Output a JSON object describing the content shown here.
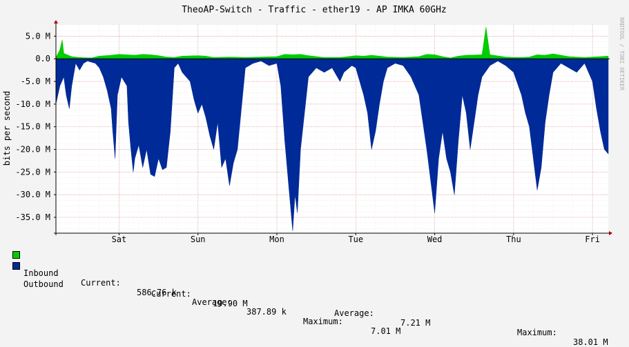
{
  "chart_data": {
    "type": "area",
    "title": "TheoAP-Switch - Traffic - ether19 - AP IMKA 60GHz",
    "ylabel": "bits per second",
    "watermark": "RRDTOOL / TOBI OETIKER",
    "ylim": [
      -38.5,
      7.5
    ],
    "yticks": [
      {
        "value": 5,
        "label": "5.0 M"
      },
      {
        "value": 0,
        "label": "0.0"
      },
      {
        "value": -5,
        "label": "-5.0 M"
      },
      {
        "value": -10,
        "label": "-10.0 M"
      },
      {
        "value": -15,
        "label": "-15.0 M"
      },
      {
        "value": -20,
        "label": "-20.0 M"
      },
      {
        "value": -25,
        "label": "-25.0 M"
      },
      {
        "value": -30,
        "label": "-30.0 M"
      },
      {
        "value": -35,
        "label": "-35.0 M"
      }
    ],
    "xrange": [
      0,
      7.0
    ],
    "xticks": [
      {
        "value": 0.8,
        "label": "Sat"
      },
      {
        "value": 1.8,
        "label": "Sun"
      },
      {
        "value": 2.8,
        "label": "Mon"
      },
      {
        "value": 3.8,
        "label": "Tue"
      },
      {
        "value": 4.8,
        "label": "Wed"
      },
      {
        "value": 5.8,
        "label": "Thu"
      },
      {
        "value": 6.8,
        "label": "Fri"
      }
    ],
    "grid": true,
    "colors": {
      "inbound": "#00CC00",
      "outbound": "#002A97",
      "grid_major": "#E8A8A8",
      "axis": "#000000",
      "background": "#FFFFFF"
    },
    "series": [
      {
        "name": "Inbound",
        "points": [
          [
            0,
            0.3
          ],
          [
            0.05,
            2.0
          ],
          [
            0.08,
            4.2
          ],
          [
            0.1,
            1.2
          ],
          [
            0.2,
            0.5
          ],
          [
            0.3,
            0.3
          ],
          [
            0.45,
            0.2
          ],
          [
            0.55,
            0.6
          ],
          [
            0.7,
            0.8
          ],
          [
            0.8,
            1.0
          ],
          [
            0.9,
            0.9
          ],
          [
            1.0,
            0.8
          ],
          [
            1.1,
            1.0
          ],
          [
            1.2,
            0.9
          ],
          [
            1.3,
            0.7
          ],
          [
            1.4,
            0.4
          ],
          [
            1.5,
            0.3
          ],
          [
            1.6,
            0.6
          ],
          [
            1.8,
            0.7
          ],
          [
            1.9,
            0.6
          ],
          [
            2.0,
            0.3
          ],
          [
            2.2,
            0.4
          ],
          [
            2.4,
            0.3
          ],
          [
            2.6,
            0.4
          ],
          [
            2.8,
            0.5
          ],
          [
            2.9,
            1.0
          ],
          [
            3.0,
            0.9
          ],
          [
            3.1,
            1.0
          ],
          [
            3.2,
            0.7
          ],
          [
            3.4,
            0.3
          ],
          [
            3.6,
            0.3
          ],
          [
            3.7,
            0.5
          ],
          [
            3.8,
            0.7
          ],
          [
            3.9,
            0.6
          ],
          [
            4.0,
            0.8
          ],
          [
            4.1,
            0.6
          ],
          [
            4.2,
            0.4
          ],
          [
            4.4,
            0.3
          ],
          [
            4.6,
            0.5
          ],
          [
            4.7,
            1.0
          ],
          [
            4.8,
            0.9
          ],
          [
            4.9,
            0.5
          ],
          [
            5.0,
            0.2
          ],
          [
            5.1,
            0.6
          ],
          [
            5.2,
            0.8
          ],
          [
            5.4,
            0.9
          ],
          [
            5.45,
            7.0
          ],
          [
            5.5,
            0.9
          ],
          [
            5.7,
            0.4
          ],
          [
            5.8,
            0.3
          ],
          [
            5.9,
            0.3
          ],
          [
            6.0,
            0.4
          ],
          [
            6.1,
            0.9
          ],
          [
            6.2,
            0.8
          ],
          [
            6.3,
            1.1
          ],
          [
            6.4,
            0.8
          ],
          [
            6.5,
            0.5
          ],
          [
            6.7,
            0.3
          ],
          [
            6.8,
            0.4
          ],
          [
            6.9,
            0.5
          ],
          [
            7.0,
            0.6
          ]
        ]
      },
      {
        "name": "Outbound",
        "points": [
          [
            0,
            -10.0
          ],
          [
            0.05,
            -6.0
          ],
          [
            0.1,
            -4.0
          ],
          [
            0.13,
            -8.0
          ],
          [
            0.17,
            -11.0
          ],
          [
            0.2,
            -6.0
          ],
          [
            0.25,
            -1.0
          ],
          [
            0.3,
            -2.5
          ],
          [
            0.35,
            -1.0
          ],
          [
            0.4,
            -0.5
          ],
          [
            0.5,
            -1.0
          ],
          [
            0.55,
            -2.0
          ],
          [
            0.6,
            -4.0
          ],
          [
            0.65,
            -7.0
          ],
          [
            0.7,
            -11.0
          ],
          [
            0.72,
            -16.0
          ],
          [
            0.75,
            -22.0
          ],
          [
            0.78,
            -8.0
          ],
          [
            0.83,
            -4.0
          ],
          [
            0.9,
            -6.0
          ],
          [
            0.92,
            -14.0
          ],
          [
            0.95,
            -20.0
          ],
          [
            0.98,
            -25.0
          ],
          [
            1.0,
            -22.0
          ],
          [
            1.05,
            -19.0
          ],
          [
            1.1,
            -24.0
          ],
          [
            1.15,
            -20.0
          ],
          [
            1.2,
            -25.5
          ],
          [
            1.25,
            -26.0
          ],
          [
            1.3,
            -22.0
          ],
          [
            1.35,
            -24.5
          ],
          [
            1.4,
            -24.0
          ],
          [
            1.45,
            -16.0
          ],
          [
            1.5,
            -2.0
          ],
          [
            1.55,
            -1.0
          ],
          [
            1.6,
            -3.0
          ],
          [
            1.7,
            -5.0
          ],
          [
            1.75,
            -9.0
          ],
          [
            1.8,
            -12.0
          ],
          [
            1.85,
            -10.0
          ],
          [
            1.9,
            -13.0
          ],
          [
            1.95,
            -17.0
          ],
          [
            2.0,
            -20.0
          ],
          [
            2.05,
            -14.0
          ],
          [
            2.1,
            -24.0
          ],
          [
            2.15,
            -22.0
          ],
          [
            2.2,
            -28.0
          ],
          [
            2.25,
            -23.0
          ],
          [
            2.3,
            -20.0
          ],
          [
            2.35,
            -11.0
          ],
          [
            2.4,
            -2.0
          ],
          [
            2.5,
            -1.0
          ],
          [
            2.6,
            -0.5
          ],
          [
            2.7,
            -1.5
          ],
          [
            2.8,
            -1.0
          ],
          [
            2.85,
            -6.0
          ],
          [
            2.9,
            -18.0
          ],
          [
            2.95,
            -28.0
          ],
          [
            3.0,
            -38.0
          ],
          [
            3.03,
            -30.0
          ],
          [
            3.06,
            -34.0
          ],
          [
            3.1,
            -20.0
          ],
          [
            3.15,
            -12.0
          ],
          [
            3.2,
            -4.0
          ],
          [
            3.3,
            -2.0
          ],
          [
            3.4,
            -3.0
          ],
          [
            3.5,
            -2.0
          ],
          [
            3.6,
            -5.0
          ],
          [
            3.65,
            -3.0
          ],
          [
            3.75,
            -1.5
          ],
          [
            3.8,
            -2.0
          ],
          [
            3.9,
            -8.0
          ],
          [
            3.95,
            -12.0
          ],
          [
            4.0,
            -20.0
          ],
          [
            4.05,
            -16.0
          ],
          [
            4.1,
            -10.0
          ],
          [
            4.15,
            -5.0
          ],
          [
            4.2,
            -2.0
          ],
          [
            4.3,
            -1.0
          ],
          [
            4.4,
            -1.5
          ],
          [
            4.5,
            -4.0
          ],
          [
            4.6,
            -8.0
          ],
          [
            4.7,
            -20.0
          ],
          [
            4.8,
            -34.0
          ],
          [
            4.85,
            -22.0
          ],
          [
            4.9,
            -16.0
          ],
          [
            4.95,
            -22.0
          ],
          [
            5.0,
            -25.0
          ],
          [
            5.05,
            -30.0
          ],
          [
            5.1,
            -18.0
          ],
          [
            5.15,
            -8.0
          ],
          [
            5.2,
            -12.0
          ],
          [
            5.25,
            -20.0
          ],
          [
            5.3,
            -14.0
          ],
          [
            5.35,
            -8.0
          ],
          [
            5.4,
            -4.0
          ],
          [
            5.5,
            -1.5
          ],
          [
            5.6,
            -0.5
          ],
          [
            5.7,
            -1.5
          ],
          [
            5.8,
            -3.0
          ],
          [
            5.9,
            -8.0
          ],
          [
            5.95,
            -12.0
          ],
          [
            6.0,
            -15.0
          ],
          [
            6.05,
            -22.0
          ],
          [
            6.1,
            -29.0
          ],
          [
            6.15,
            -24.0
          ],
          [
            6.2,
            -14.0
          ],
          [
            6.25,
            -8.0
          ],
          [
            6.3,
            -3.0
          ],
          [
            6.4,
            -1.0
          ],
          [
            6.5,
            -2.0
          ],
          [
            6.6,
            -3.0
          ],
          [
            6.7,
            -1.0
          ],
          [
            6.8,
            -5.0
          ],
          [
            6.85,
            -11.0
          ],
          [
            6.9,
            -16.0
          ],
          [
            6.95,
            -20.0
          ],
          [
            7.0,
            -21.0
          ]
        ]
      }
    ]
  },
  "legend": {
    "inbound": {
      "name": "Inbound",
      "current_label": "Current:",
      "current": "586.76 k",
      "average_label": "Average:",
      "average": "387.89 k",
      "maximum_label": "Maximum:",
      "maximum": "7.01 M"
    },
    "outbound": {
      "name": "Outbound",
      "current_label": "Current:",
      "current": "19.90 M",
      "average_label": "Average:",
      "average": "7.21 M",
      "maximum_label": "Maximum:",
      "maximum": "38.01 M"
    }
  }
}
